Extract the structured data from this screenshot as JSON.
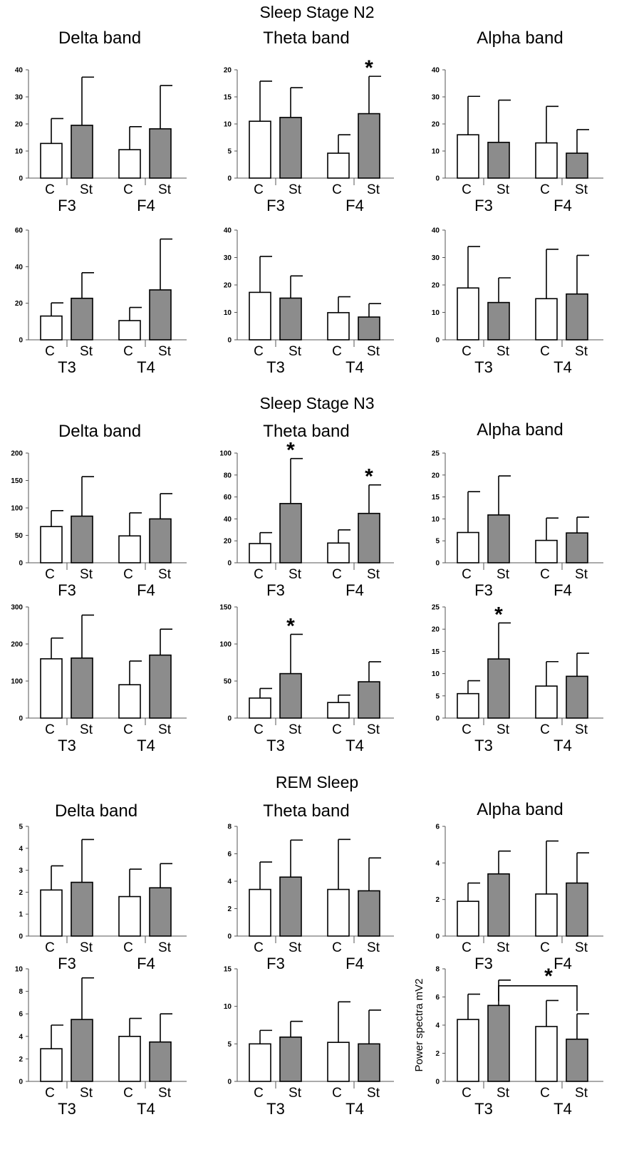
{
  "stages": [
    {
      "title": "Sleep Stage N2"
    },
    {
      "title": "Sleep Stage N3"
    },
    {
      "title": "REM Sleep"
    }
  ],
  "bands": [
    "Delta band",
    "Theta band",
    "Alpha band"
  ],
  "chart_data": [
    {
      "type": "bar",
      "stage": "Sleep Stage N2",
      "band": "Delta band",
      "electrodes": [
        "F3",
        "F4"
      ],
      "groups": [
        "C",
        "St"
      ],
      "ylim": [
        0,
        40
      ],
      "yticks": [
        0,
        10,
        20,
        30,
        40
      ],
      "series": [
        {
          "name": "C",
          "values": [
            12.8,
            10.5
          ],
          "errors": [
            9.2,
            8.5
          ]
        },
        {
          "name": "St",
          "values": [
            19.5,
            18.2
          ],
          "errors": [
            17.8,
            16.0
          ]
        }
      ],
      "significance": []
    },
    {
      "type": "bar",
      "stage": "Sleep Stage N2",
      "band": "Theta band",
      "electrodes": [
        "F3",
        "F4"
      ],
      "groups": [
        "C",
        "St"
      ],
      "ylim": [
        0,
        20
      ],
      "yticks": [
        0,
        5,
        10,
        15,
        20
      ],
      "series": [
        {
          "name": "C",
          "values": [
            10.5,
            4.6
          ],
          "errors": [
            7.4,
            3.4
          ]
        },
        {
          "name": "St",
          "values": [
            11.2,
            11.9
          ],
          "errors": [
            5.5,
            6.9
          ]
        }
      ],
      "significance": [
        {
          "electrode": "F4",
          "group": "St"
        }
      ]
    },
    {
      "type": "bar",
      "stage": "Sleep Stage N2",
      "band": "Alpha band",
      "electrodes": [
        "F3",
        "F4"
      ],
      "groups": [
        "C",
        "St"
      ],
      "ylim": [
        0,
        40
      ],
      "yticks": [
        0,
        10,
        20,
        30,
        40
      ],
      "series": [
        {
          "name": "C",
          "values": [
            16.0,
            13.0
          ],
          "errors": [
            14.2,
            13.5
          ]
        },
        {
          "name": "St",
          "values": [
            13.2,
            9.2
          ],
          "errors": [
            15.6,
            8.7
          ]
        }
      ],
      "significance": []
    },
    {
      "type": "bar",
      "stage": "Sleep Stage N2",
      "band": "Delta band",
      "electrodes": [
        "T3",
        "T4"
      ],
      "groups": [
        "C",
        "St"
      ],
      "ylim": [
        0,
        60
      ],
      "yticks": [
        0,
        20,
        40,
        60
      ],
      "series": [
        {
          "name": "C",
          "values": [
            13.0,
            10.5
          ],
          "errors": [
            7.2,
            7.2
          ]
        },
        {
          "name": "St",
          "values": [
            22.7,
            27.3
          ],
          "errors": [
            14.0,
            27.8
          ]
        }
      ],
      "significance": []
    },
    {
      "type": "bar",
      "stage": "Sleep Stage N2",
      "band": "Theta band",
      "electrodes": [
        "T3",
        "T4"
      ],
      "groups": [
        "C",
        "St"
      ],
      "ylim": [
        0,
        40
      ],
      "yticks": [
        0,
        10,
        20,
        30,
        40
      ],
      "series": [
        {
          "name": "C",
          "values": [
            17.3,
            9.9
          ],
          "errors": [
            13.1,
            5.8
          ]
        },
        {
          "name": "St",
          "values": [
            15.2,
            8.3
          ],
          "errors": [
            8.1,
            4.9
          ]
        }
      ],
      "significance": []
    },
    {
      "type": "bar",
      "stage": "Sleep Stage N2",
      "band": "Alpha band",
      "electrodes": [
        "T3",
        "T4"
      ],
      "groups": [
        "C",
        "St"
      ],
      "ylim": [
        0,
        40
      ],
      "yticks": [
        0,
        10,
        20,
        30,
        40
      ],
      "series": [
        {
          "name": "C",
          "values": [
            18.9,
            15.0
          ],
          "errors": [
            15.1,
            18.0
          ]
        },
        {
          "name": "St",
          "values": [
            13.6,
            16.7
          ],
          "errors": [
            9.0,
            14.1
          ]
        }
      ],
      "significance": []
    },
    {
      "type": "bar",
      "stage": "Sleep Stage N3",
      "band": "Delta band",
      "electrodes": [
        "F3",
        "F4"
      ],
      "groups": [
        "C",
        "St"
      ],
      "ylim": [
        0,
        200
      ],
      "yticks": [
        0,
        50,
        100,
        150,
        200
      ],
      "series": [
        {
          "name": "C",
          "values": [
            66,
            49
          ],
          "errors": [
            29,
            42
          ]
        },
        {
          "name": "St",
          "values": [
            85,
            80
          ],
          "errors": [
            72,
            46
          ]
        }
      ],
      "significance": []
    },
    {
      "type": "bar",
      "stage": "Sleep Stage N3",
      "band": "Theta band",
      "electrodes": [
        "F3",
        "F4"
      ],
      "groups": [
        "C",
        "St"
      ],
      "ylim": [
        0,
        100
      ],
      "yticks": [
        0,
        20,
        40,
        60,
        80,
        100
      ],
      "series": [
        {
          "name": "C",
          "values": [
            17.5,
            18.0
          ],
          "errors": [
            10.0,
            12.0
          ]
        },
        {
          "name": "St",
          "values": [
            54,
            45
          ],
          "errors": [
            41,
            26
          ]
        }
      ],
      "significance": [
        {
          "electrode": "F3",
          "group": "St"
        },
        {
          "electrode": "F4",
          "group": "St"
        }
      ]
    },
    {
      "type": "bar",
      "stage": "Sleep Stage N3",
      "band": "Alpha band",
      "electrodes": [
        "F3",
        "F4"
      ],
      "groups": [
        "C",
        "St"
      ],
      "ylim": [
        0,
        25
      ],
      "yticks": [
        0,
        5,
        10,
        15,
        20,
        25
      ],
      "series": [
        {
          "name": "C",
          "values": [
            6.9,
            5.1
          ],
          "errors": [
            9.3,
            5.1
          ]
        },
        {
          "name": "St",
          "values": [
            10.9,
            6.8
          ],
          "errors": [
            8.9,
            3.6
          ]
        }
      ],
      "significance": []
    },
    {
      "type": "bar",
      "stage": "Sleep Stage N3",
      "band": "Delta band",
      "electrodes": [
        "T3",
        "T4"
      ],
      "groups": [
        "C",
        "St"
      ],
      "ylim": [
        0,
        300
      ],
      "yticks": [
        0,
        100,
        200,
        300
      ],
      "series": [
        {
          "name": "C",
          "values": [
            160,
            90
          ],
          "errors": [
            56,
            64
          ]
        },
        {
          "name": "St",
          "values": [
            162,
            170
          ],
          "errors": [
            116,
            70
          ]
        }
      ],
      "significance": []
    },
    {
      "type": "bar",
      "stage": "Sleep Stage N3",
      "band": "Theta band",
      "electrodes": [
        "T3",
        "T4"
      ],
      "groups": [
        "C",
        "St"
      ],
      "ylim": [
        0,
        150
      ],
      "yticks": [
        0,
        50,
        100,
        150
      ],
      "series": [
        {
          "name": "C",
          "values": [
            27,
            21
          ],
          "errors": [
            13,
            10
          ]
        },
        {
          "name": "St",
          "values": [
            60,
            49
          ],
          "errors": [
            53,
            27
          ]
        }
      ],
      "significance": [
        {
          "electrode": "T3",
          "group": "St"
        }
      ]
    },
    {
      "type": "bar",
      "stage": "Sleep Stage N3",
      "band": "Alpha band",
      "electrodes": [
        "T3",
        "T4"
      ],
      "groups": [
        "C",
        "St"
      ],
      "ylim": [
        0,
        25
      ],
      "yticks": [
        0,
        5,
        10,
        15,
        20,
        25
      ],
      "series": [
        {
          "name": "C",
          "values": [
            5.5,
            7.2
          ],
          "errors": [
            2.9,
            5.5
          ]
        },
        {
          "name": "St",
          "values": [
            13.3,
            9.4
          ],
          "errors": [
            8.1,
            5.2
          ]
        }
      ],
      "significance": [
        {
          "electrode": "T3",
          "group": "St"
        }
      ]
    },
    {
      "type": "bar",
      "stage": "REM Sleep",
      "band": "Delta band",
      "electrodes": [
        "F3",
        "F4"
      ],
      "groups": [
        "C",
        "St"
      ],
      "ylim": [
        0,
        5
      ],
      "yticks": [
        0,
        1,
        2,
        3,
        4,
        5
      ],
      "series": [
        {
          "name": "C",
          "values": [
            2.1,
            1.8
          ],
          "errors": [
            1.1,
            1.25
          ]
        },
        {
          "name": "St",
          "values": [
            2.45,
            2.2
          ],
          "errors": [
            1.95,
            1.1
          ]
        }
      ],
      "significance": []
    },
    {
      "type": "bar",
      "stage": "REM Sleep",
      "band": "Theta band",
      "electrodes": [
        "F3",
        "F4"
      ],
      "groups": [
        "C",
        "St"
      ],
      "ylim": [
        0,
        8
      ],
      "yticks": [
        0,
        2,
        4,
        6,
        8
      ],
      "series": [
        {
          "name": "C",
          "values": [
            3.4,
            3.4
          ],
          "errors": [
            2.0,
            3.65
          ]
        },
        {
          "name": "St",
          "values": [
            4.3,
            3.3
          ],
          "errors": [
            2.7,
            2.4
          ]
        }
      ],
      "significance": []
    },
    {
      "type": "bar",
      "stage": "REM Sleep",
      "band": "Alpha band",
      "electrodes": [
        "F3",
        "F4"
      ],
      "groups": [
        "C",
        "St"
      ],
      "ylim": [
        0,
        6
      ],
      "yticks": [
        0,
        2,
        4,
        6
      ],
      "series": [
        {
          "name": "C",
          "values": [
            1.9,
            2.3
          ],
          "errors": [
            1.0,
            2.9
          ]
        },
        {
          "name": "St",
          "values": [
            3.4,
            2.9
          ],
          "errors": [
            1.25,
            1.65
          ]
        }
      ],
      "significance": []
    },
    {
      "type": "bar",
      "stage": "REM Sleep",
      "band": "Delta band",
      "electrodes": [
        "T3",
        "T4"
      ],
      "groups": [
        "C",
        "St"
      ],
      "ylim": [
        0,
        10
      ],
      "yticks": [
        0,
        2,
        4,
        6,
        8,
        10
      ],
      "series": [
        {
          "name": "C",
          "values": [
            2.9,
            4.0
          ],
          "errors": [
            2.1,
            1.6
          ]
        },
        {
          "name": "St",
          "values": [
            5.5,
            3.5
          ],
          "errors": [
            3.7,
            2.5
          ]
        }
      ],
      "significance": []
    },
    {
      "type": "bar",
      "stage": "REM Sleep",
      "band": "Theta band",
      "electrodes": [
        "T3",
        "T4"
      ],
      "groups": [
        "C",
        "St"
      ],
      "ylim": [
        0,
        15
      ],
      "yticks": [
        0,
        5,
        10,
        15
      ],
      "series": [
        {
          "name": "C",
          "values": [
            5.0,
            5.2
          ],
          "errors": [
            1.8,
            5.4
          ]
        },
        {
          "name": "St",
          "values": [
            5.9,
            5.0
          ],
          "errors": [
            2.1,
            4.5
          ]
        }
      ],
      "significance": []
    },
    {
      "type": "bar",
      "stage": "REM Sleep",
      "band": "Alpha band",
      "electrodes": [
        "T3",
        "T4"
      ],
      "groups": [
        "C",
        "St"
      ],
      "ylim": [
        0,
        8
      ],
      "yticks": [
        0,
        2,
        4,
        6,
        8
      ],
      "ylabel": "Power spectra  mV2",
      "series": [
        {
          "name": "C",
          "values": [
            4.4,
            3.9
          ],
          "errors": [
            1.8,
            1.85
          ]
        },
        {
          "name": "St",
          "values": [
            5.4,
            3.0
          ],
          "errors": [
            1.8,
            1.8
          ]
        }
      ],
      "significance": [
        {
          "bracket": [
            "T3 St",
            "T4 St"
          ]
        }
      ]
    }
  ],
  "colors": {
    "control": "#ffffff",
    "stuttering": "#8c8c8c",
    "stroke": "#000000"
  },
  "significance_marker": "*"
}
